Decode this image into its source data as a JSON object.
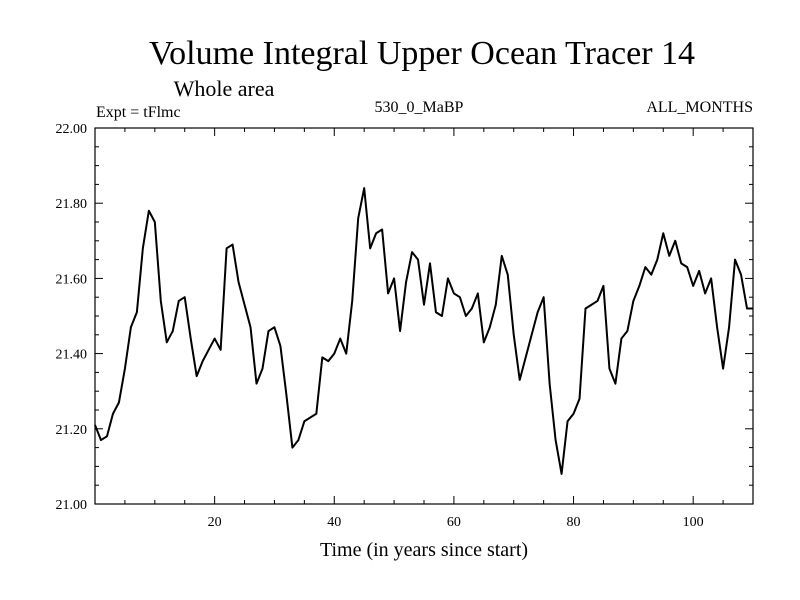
{
  "header": {
    "title": "Volume Integral Upper Ocean Tracer 14",
    "subtitle": "Whole area",
    "expt": "Expt = tFlmc",
    "run": "530_0_MaBP",
    "months": "ALL_MONTHS"
  },
  "chart_data": {
    "type": "line",
    "title": "Volume Integral Upper Ocean Tracer 14",
    "xlabel": "Time (in years since start)",
    "ylabel": "",
    "xlim": [
      0,
      110
    ],
    "ylim": [
      21.0,
      22.0
    ],
    "xticks": [
      20,
      40,
      60,
      80,
      100
    ],
    "xtick_labels": [
      "20",
      "40",
      "60",
      "80",
      "100"
    ],
    "yticks": [
      21.0,
      21.2,
      21.4,
      21.6,
      21.8,
      22.0
    ],
    "ytick_labels": [
      "21.00",
      "21.20",
      "21.40",
      "21.60",
      "21.80",
      "22.00"
    ],
    "grid": false,
    "series": [
      {
        "name": "Tracer 14",
        "x": [
          0,
          1,
          2,
          3,
          4,
          5,
          6,
          7,
          8,
          9,
          10,
          11,
          12,
          13,
          14,
          15,
          16,
          17,
          18,
          19,
          20,
          21,
          22,
          23,
          24,
          25,
          26,
          27,
          28,
          29,
          30,
          31,
          32,
          33,
          34,
          35,
          36,
          37,
          38,
          39,
          40,
          41,
          42,
          43,
          44,
          45,
          46,
          47,
          48,
          49,
          50,
          51,
          52,
          53,
          54,
          55,
          56,
          57,
          58,
          59,
          60,
          61,
          62,
          63,
          64,
          65,
          66,
          67,
          68,
          69,
          70,
          71,
          72,
          73,
          74,
          75,
          76,
          77,
          78,
          79,
          80,
          81,
          82,
          83,
          84,
          85,
          86,
          87,
          88,
          89,
          90,
          91,
          92,
          93,
          94,
          95,
          96,
          97,
          98,
          99,
          100,
          101,
          102,
          103,
          104,
          105,
          106,
          107,
          108,
          109,
          110
        ],
        "y": [
          21.21,
          21.17,
          21.18,
          21.24,
          21.27,
          21.36,
          21.47,
          21.51,
          21.68,
          21.78,
          21.75,
          21.54,
          21.43,
          21.46,
          21.54,
          21.55,
          21.44,
          21.34,
          21.38,
          21.41,
          21.44,
          21.41,
          21.68,
          21.69,
          21.59,
          21.53,
          21.47,
          21.32,
          21.36,
          21.46,
          21.47,
          21.42,
          21.29,
          21.15,
          21.17,
          21.22,
          21.23,
          21.24,
          21.39,
          21.38,
          21.4,
          21.44,
          21.4,
          21.54,
          21.76,
          21.84,
          21.68,
          21.72,
          21.73,
          21.56,
          21.6,
          21.46,
          21.59,
          21.67,
          21.65,
          21.53,
          21.64,
          21.51,
          21.5,
          21.6,
          21.56,
          21.55,
          21.5,
          21.52,
          21.56,
          21.43,
          21.47,
          21.53,
          21.66,
          21.61,
          21.45,
          21.33,
          21.39,
          21.45,
          21.51,
          21.55,
          21.32,
          21.17,
          21.08,
          21.22,
          21.24,
          21.28,
          21.52,
          21.53,
          21.54,
          21.58,
          21.36,
          21.32,
          21.44,
          21.46,
          21.54,
          21.58,
          21.63,
          21.61,
          21.65,
          21.72,
          21.66,
          21.7,
          21.64,
          21.63,
          21.58,
          21.62,
          21.56,
          21.6,
          21.47,
          21.36,
          21.47,
          21.65,
          21.61,
          21.52,
          21.52
        ]
      }
    ]
  }
}
